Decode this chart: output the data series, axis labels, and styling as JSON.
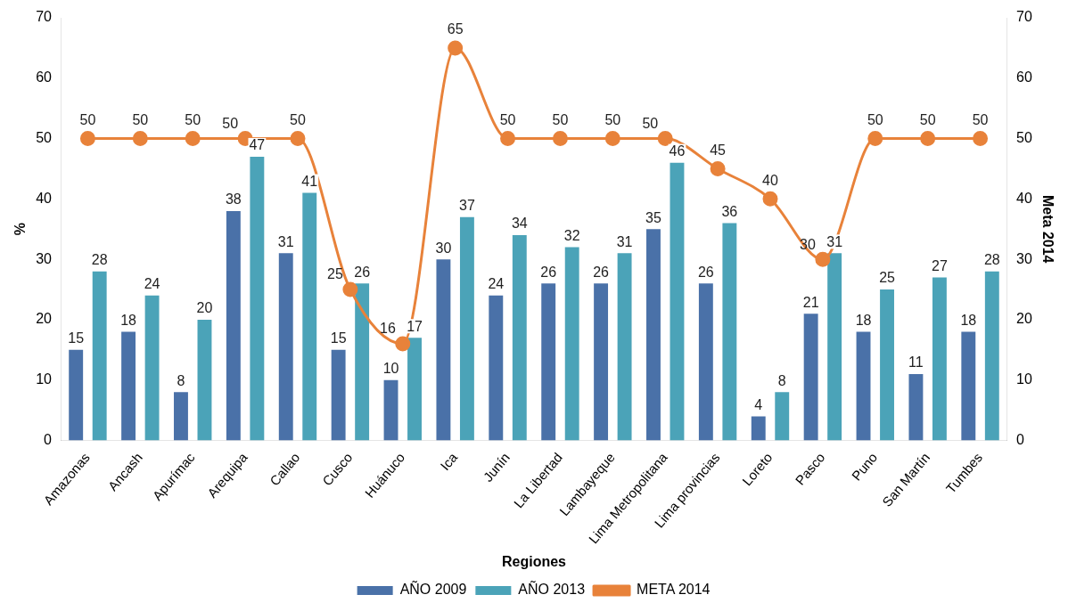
{
  "chart_data": {
    "type": "bar",
    "xlabel": "Regiones",
    "ylabel": "%",
    "y2label": "Meta 2014",
    "categories": [
      "Amazonas",
      "Ancash",
      "Apurímac",
      "Arequipa",
      "Callao",
      "Cusco",
      "Huánuco",
      "Ica",
      "Junín",
      "La Libertad",
      "Lambayeque",
      "Lima Metropolitana",
      "Lima provincias",
      "Loreto",
      "Pasco",
      "Puno",
      "San Martín",
      "Tumbes"
    ],
    "series": [
      {
        "name": "AÑO 2009",
        "color": "#4a71a8",
        "values": [
          15,
          18,
          8,
          38,
          31,
          15,
          10,
          30,
          24,
          26,
          26,
          35,
          26,
          4,
          21,
          18,
          11,
          18
        ]
      },
      {
        "name": "AÑO 2013",
        "color": "#4ba3b8",
        "values": [
          28,
          24,
          20,
          47,
          41,
          26,
          17,
          37,
          34,
          32,
          31,
          46,
          36,
          8,
          31,
          25,
          27,
          28
        ]
      },
      {
        "name": "META 2014",
        "type": "line",
        "axis": "y2",
        "color": "#e8823a",
        "marker": "circle",
        "values": [
          50,
          50,
          50,
          50,
          50,
          25,
          16,
          65,
          50,
          50,
          50,
          50,
          45,
          40,
          30,
          50,
          50,
          50
        ]
      }
    ],
    "ylim": [
      0,
      70
    ],
    "yticks": [
      0,
      10,
      20,
      30,
      40,
      50,
      60,
      70
    ],
    "y2lim": [
      0,
      70
    ],
    "y2ticks": [
      0,
      10,
      20,
      30,
      40,
      50,
      60,
      70
    ],
    "grid": false,
    "legend": "bottom",
    "data_labels": true
  }
}
